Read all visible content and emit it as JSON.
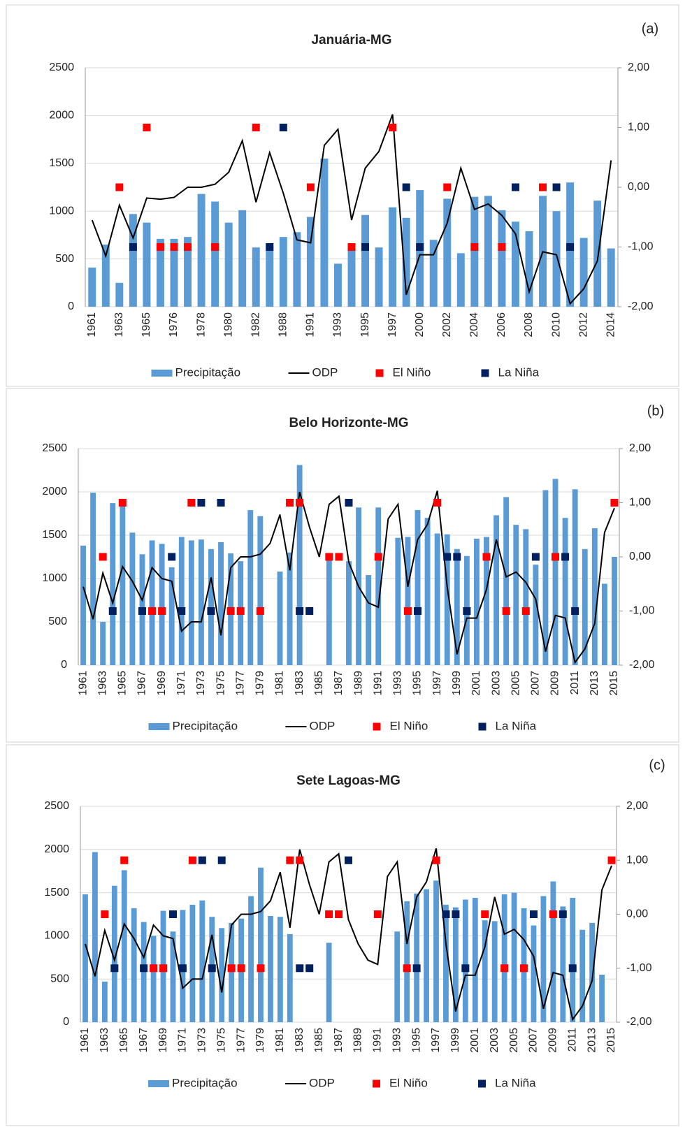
{
  "chart_data": [
    {
      "type": "bar",
      "title": "Januária-MG",
      "label": "(a)",
      "categories": [
        "1961",
        null,
        "1963",
        null,
        "1965",
        null,
        "1976",
        null,
        "1978",
        null,
        "1980",
        null,
        "1982",
        null,
        "1988",
        null,
        "1991",
        null,
        "1993",
        null,
        "1995",
        null,
        "1997",
        null,
        "2000",
        null,
        "2002",
        null,
        "2004",
        null,
        "2006",
        null,
        "2008",
        null,
        "2010",
        null,
        "2012",
        null,
        "2014"
      ],
      "ylim": [
        0,
        2500
      ],
      "yticks": [
        0,
        500,
        1000,
        1500,
        2000,
        2500
      ],
      "y2lim": [
        -2,
        2
      ],
      "y2ticks": [
        {
          "value": -2,
          "label": "-2,00"
        },
        {
          "value": -1,
          "label": "-1,00"
        },
        {
          "value": 0,
          "label": "0,00"
        },
        {
          "value": 1,
          "label": "1,00"
        },
        {
          "value": 2,
          "label": "2,00"
        }
      ],
      "grid": true,
      "series": [
        {
          "name": "Precipitação",
          "type": "bar",
          "color": "#5b9bd5",
          "values": [
            410,
            650,
            250,
            970,
            880,
            710,
            710,
            730,
            1180,
            1100,
            880,
            1010,
            620,
            640,
            730,
            780,
            940,
            1550,
            450,
            650,
            960,
            620,
            1040,
            930,
            1220,
            700,
            1130,
            560,
            1150,
            1160,
            1010,
            890,
            790,
            1160,
            1000,
            1300,
            720,
            1110,
            610
          ]
        },
        {
          "name": "ODP",
          "type": "line",
          "axis": "y2",
          "color": "#000000",
          "values": [
            -0.55,
            -1.15,
            -0.3,
            -0.85,
            -0.18,
            -0.2,
            -0.17,
            0,
            0,
            0.05,
            0.25,
            0.78,
            -0.25,
            0.58,
            -0.1,
            -0.88,
            -0.93,
            0.7,
            0.97,
            -0.55,
            0.32,
            0.6,
            1.22,
            -1.8,
            -1.13,
            -1.13,
            -0.6,
            0.32,
            -0.37,
            -0.28,
            -0.47,
            -0.78,
            -1.75,
            -1.08,
            -1.13,
            -1.95,
            -1.7,
            -1.23,
            0.45
          ]
        },
        {
          "name": "El Niño",
          "type": "scatter",
          "axis": "y2",
          "color": "#ff0000",
          "values": [
            null,
            null,
            0,
            null,
            1,
            -1,
            -1,
            -1,
            null,
            -1,
            null,
            null,
            1,
            null,
            null,
            null,
            0,
            null,
            null,
            -1,
            null,
            null,
            1,
            null,
            null,
            null,
            0,
            null,
            -1,
            null,
            -1,
            null,
            null,
            0,
            null,
            null,
            null,
            null,
            null
          ]
        },
        {
          "name": "La Niña",
          "type": "scatter",
          "axis": "y2",
          "color": "#002060",
          "values": [
            null,
            null,
            null,
            -1,
            null,
            null,
            null,
            null,
            null,
            null,
            null,
            null,
            null,
            -1,
            1,
            null,
            null,
            null,
            null,
            null,
            -1,
            null,
            null,
            0,
            -1,
            null,
            null,
            null,
            null,
            null,
            null,
            0,
            null,
            null,
            0,
            -1,
            null,
            null,
            null
          ]
        }
      ]
    },
    {
      "type": "bar",
      "title": "Belo Horizonte-MG",
      "label": "(b)",
      "categories": [
        "1961",
        null,
        "1963",
        null,
        "1965",
        null,
        "1967",
        null,
        "1969",
        null,
        "1971",
        null,
        "1973",
        null,
        "1975",
        null,
        "1977",
        null,
        "1979",
        null,
        "1981",
        null,
        "1983",
        null,
        "1985",
        null,
        "1987",
        null,
        "1989",
        null,
        "1991",
        null,
        "1993",
        null,
        "1995",
        null,
        "1997",
        null,
        "1999",
        null,
        "2001",
        null,
        "2003",
        null,
        "2005",
        null,
        "2007",
        null,
        "2009",
        null,
        "2011",
        null,
        "2013",
        null,
        "2015"
      ],
      "ylim": [
        0,
        2500
      ],
      "yticks": [
        0,
        500,
        1000,
        1500,
        2000,
        2500
      ],
      "y2lim": [
        -2,
        2
      ],
      "y2ticks": [
        {
          "value": -2,
          "label": "-2,00"
        },
        {
          "value": -1,
          "label": "-1,00"
        },
        {
          "value": 0,
          "label": "0,00"
        },
        {
          "value": 1,
          "label": "1,00"
        },
        {
          "value": 2,
          "label": "2,00"
        }
      ],
      "grid": true,
      "series": [
        {
          "name": "Precipitação",
          "type": "bar",
          "color": "#5b9bd5",
          "values": [
            1380,
            1990,
            500,
            1870,
            1900,
            1530,
            1280,
            1440,
            1400,
            1130,
            1480,
            1440,
            1450,
            1340,
            1420,
            1290,
            1200,
            1790,
            1720,
            null,
            1080,
            1300,
            2310,
            null,
            null,
            1260,
            null,
            1200,
            1820,
            1040,
            1820,
            null,
            1470,
            1480,
            1790,
            1700,
            1520,
            1510,
            1340,
            1260,
            1460,
            1480,
            1730,
            1940,
            1620,
            1570,
            1160,
            2020,
            2150,
            1700,
            2030,
            1340,
            1580,
            940,
            1250
          ]
        },
        {
          "name": "ODP",
          "type": "line",
          "axis": "y2",
          "color": "#000000",
          "values": [
            -0.55,
            -1.15,
            -0.3,
            -0.85,
            -0.18,
            -0.45,
            -0.8,
            -0.2,
            -0.4,
            -0.45,
            -1.37,
            -1.2,
            -1.2,
            -0.38,
            -1.45,
            -0.2,
            0,
            0,
            0.05,
            0.25,
            0.78,
            -0.25,
            1.2,
            0.55,
            0,
            0.97,
            1.12,
            -0.1,
            -0.55,
            -0.85,
            -0.93,
            0.7,
            0.97,
            -0.55,
            0.32,
            0.6,
            1.22,
            -0.55,
            -1.8,
            -1.13,
            -1.13,
            -0.6,
            0.32,
            -0.37,
            -0.28,
            -0.47,
            -0.78,
            -1.75,
            -1.08,
            -1.13,
            -1.95,
            -1.7,
            -1.23,
            0.45,
            0.9
          ]
        },
        {
          "name": "El Niño",
          "type": "scatter",
          "axis": "y2",
          "color": "#ff0000",
          "values": [
            null,
            null,
            0,
            null,
            1,
            null,
            null,
            -1,
            -1,
            null,
            null,
            1,
            null,
            null,
            null,
            -1,
            -1,
            null,
            -1,
            null,
            null,
            1,
            1,
            null,
            null,
            0,
            0,
            null,
            null,
            null,
            0,
            null,
            null,
            -1,
            null,
            null,
            1,
            null,
            null,
            null,
            null,
            0,
            null,
            -1,
            null,
            -1,
            null,
            null,
            0,
            null,
            null,
            null,
            null,
            null,
            1
          ]
        },
        {
          "name": "La Niña",
          "type": "scatter",
          "axis": "y2",
          "color": "#002060",
          "values": [
            null,
            null,
            null,
            -1,
            null,
            null,
            -1,
            null,
            null,
            0,
            -1,
            null,
            1,
            -1,
            1,
            null,
            null,
            null,
            null,
            null,
            null,
            null,
            -1,
            -1,
            null,
            null,
            null,
            1,
            null,
            null,
            null,
            null,
            null,
            null,
            -1,
            null,
            null,
            0,
            0,
            -1,
            null,
            null,
            null,
            null,
            null,
            null,
            0,
            null,
            null,
            0,
            -1,
            null,
            null,
            null,
            null
          ]
        }
      ]
    },
    {
      "type": "bar",
      "title": "Sete Lagoas-MG",
      "label": "(c)",
      "categories": [
        "1961",
        null,
        "1963",
        null,
        "1965",
        null,
        "1967",
        null,
        "1969",
        null,
        "1971",
        null,
        "1973",
        null,
        "1975",
        null,
        "1977",
        null,
        "1979",
        null,
        "1981",
        null,
        "1983",
        null,
        "1985",
        null,
        "1987",
        null,
        "1989",
        null,
        "1991",
        null,
        "1993",
        null,
        "1995",
        null,
        "1997",
        null,
        "1999",
        null,
        "2001",
        null,
        "2003",
        null,
        "2005",
        null,
        "2007",
        null,
        "2009",
        null,
        "2011",
        null,
        "2013",
        null,
        "2015"
      ],
      "ylim": [
        0,
        2500
      ],
      "yticks": [
        0,
        500,
        1000,
        1500,
        2000,
        2500
      ],
      "y2lim": [
        -2,
        2
      ],
      "y2ticks": [
        {
          "value": -2,
          "label": "-2,00"
        },
        {
          "value": -1,
          "label": "-1,00"
        },
        {
          "value": 0,
          "label": "0,00"
        },
        {
          "value": 1,
          "label": "1,00"
        },
        {
          "value": 2,
          "label": "2,00"
        }
      ],
      "grid": true,
      "series": [
        {
          "name": "Precipitação",
          "type": "bar",
          "color": "#5b9bd5",
          "values": [
            1480,
            1970,
            470,
            1580,
            1760,
            1320,
            1160,
            1000,
            1290,
            1050,
            1300,
            1360,
            1410,
            1220,
            1090,
            1150,
            1200,
            1460,
            1790,
            1230,
            1220,
            1020,
            null,
            null,
            null,
            920,
            null,
            null,
            null,
            null,
            null,
            null,
            1050,
            1400,
            1490,
            1540,
            1640,
            1360,
            1330,
            1420,
            1440,
            1180,
            1170,
            1480,
            1500,
            1320,
            1120,
            1460,
            1630,
            1340,
            1440,
            1070,
            1150,
            550,
            null
          ]
        },
        {
          "name": "ODP",
          "type": "line",
          "axis": "y2",
          "color": "#000000",
          "values": [
            -0.55,
            -1.15,
            -0.3,
            -0.85,
            -0.18,
            -0.45,
            -0.8,
            -0.2,
            -0.4,
            -0.45,
            -1.37,
            -1.2,
            -1.2,
            -0.38,
            -1.45,
            -0.2,
            0,
            0,
            0.05,
            0.25,
            0.78,
            -0.25,
            1.2,
            0.55,
            0,
            0.97,
            1.12,
            -0.1,
            -0.55,
            -0.85,
            -0.93,
            0.7,
            0.97,
            -0.55,
            0.32,
            0.6,
            1.22,
            -0.55,
            -1.8,
            -1.13,
            -1.13,
            -0.6,
            0.32,
            -0.37,
            -0.28,
            -0.47,
            -0.78,
            -1.75,
            -1.08,
            -1.13,
            -1.95,
            -1.7,
            -1.23,
            0.45,
            0.9
          ]
        },
        {
          "name": "El Niño",
          "type": "scatter",
          "axis": "y2",
          "color": "#ff0000",
          "values": [
            null,
            null,
            0,
            null,
            1,
            null,
            null,
            -1,
            -1,
            null,
            null,
            1,
            null,
            null,
            null,
            -1,
            -1,
            null,
            -1,
            null,
            null,
            1,
            1,
            null,
            null,
            0,
            0,
            null,
            null,
            null,
            0,
            null,
            null,
            -1,
            null,
            null,
            1,
            null,
            null,
            null,
            null,
            0,
            null,
            -1,
            null,
            -1,
            null,
            null,
            0,
            null,
            null,
            null,
            null,
            null,
            1
          ]
        },
        {
          "name": "La Niña",
          "type": "scatter",
          "axis": "y2",
          "color": "#002060",
          "values": [
            null,
            null,
            null,
            -1,
            null,
            null,
            -1,
            null,
            null,
            0,
            -1,
            null,
            1,
            -1,
            1,
            null,
            null,
            null,
            null,
            null,
            null,
            null,
            -1,
            -1,
            null,
            null,
            null,
            1,
            null,
            null,
            null,
            null,
            null,
            null,
            -1,
            null,
            null,
            0,
            0,
            -1,
            null,
            null,
            null,
            null,
            null,
            null,
            0,
            null,
            null,
            0,
            -1,
            null,
            null,
            null,
            null
          ]
        }
      ]
    }
  ]
}
